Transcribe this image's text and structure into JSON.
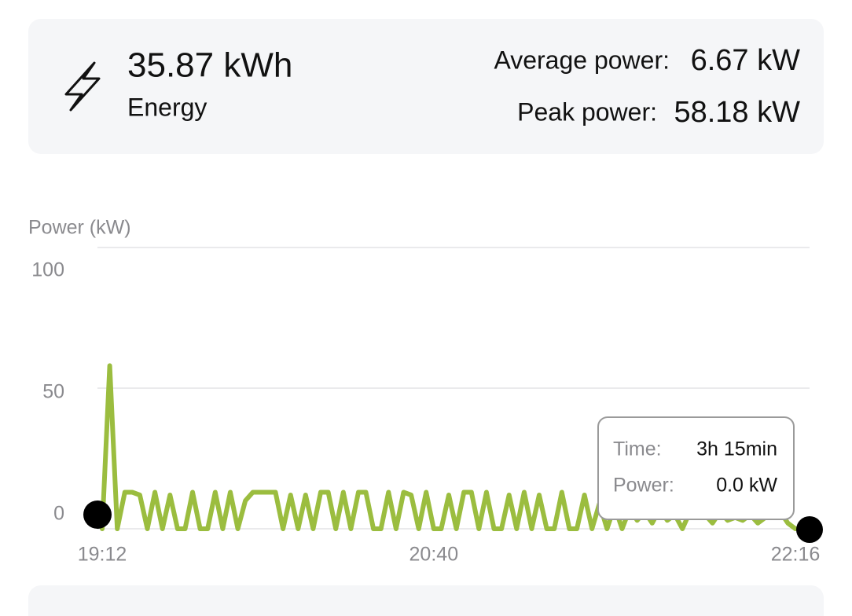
{
  "summary": {
    "energy_value": "35.87 kWh",
    "energy_label": "Energy",
    "average_label": "Average power:",
    "average_value": "6.67 kW",
    "peak_label": "Peak power:",
    "peak_value": "58.18 kW"
  },
  "chart_data": {
    "type": "line",
    "y_label": "Power (kW)",
    "color": "#9bbd3f",
    "ylim": [
      0,
      100
    ],
    "yticks": [
      0,
      50,
      100
    ],
    "grid": true,
    "x": [
      "19:12",
      null,
      null,
      null,
      null,
      null,
      null,
      null,
      null,
      null,
      null,
      null,
      null,
      null,
      null,
      null,
      null,
      null,
      null,
      null,
      null,
      null,
      null,
      null,
      null,
      null,
      null,
      null,
      null,
      null,
      null,
      null,
      null,
      null,
      null,
      null,
      null,
      null,
      null,
      null,
      null,
      null,
      null,
      null,
      "20:40",
      null,
      null,
      null,
      null,
      null,
      null,
      null,
      null,
      null,
      null,
      null,
      null,
      null,
      null,
      null,
      null,
      null,
      null,
      null,
      null,
      null,
      null,
      null,
      null,
      null,
      null,
      null,
      null,
      null,
      null,
      null,
      null,
      null,
      null,
      null,
      null,
      null,
      null,
      null,
      null,
      null,
      null,
      null,
      null,
      null,
      null,
      null,
      "22:16"
    ],
    "values": [
      0,
      58,
      0,
      13,
      13,
      12,
      0,
      13,
      0,
      12,
      0,
      0,
      13,
      0,
      0,
      13,
      0,
      13,
      0,
      10,
      13,
      13,
      13,
      13,
      0,
      12,
      0,
      12,
      0,
      13,
      13,
      0,
      13,
      0,
      13,
      13,
      0,
      0,
      13,
      0,
      13,
      12,
      0,
      13,
      0,
      0,
      12,
      0,
      13,
      13,
      0,
      13,
      0,
      0,
      12,
      0,
      13,
      0,
      12,
      0,
      0,
      13,
      0,
      0,
      12,
      0,
      9,
      0,
      8,
      0,
      7,
      3,
      6,
      2,
      7,
      3,
      5,
      0,
      6,
      4,
      5,
      2,
      6,
      3,
      4,
      3,
      5,
      2,
      4,
      5,
      6,
      2,
      0
    ],
    "tooltip": {
      "time_label": "Time:",
      "time_value": "3h 15min",
      "power_label": "Power:",
      "power_value": "0.0 kW"
    }
  }
}
